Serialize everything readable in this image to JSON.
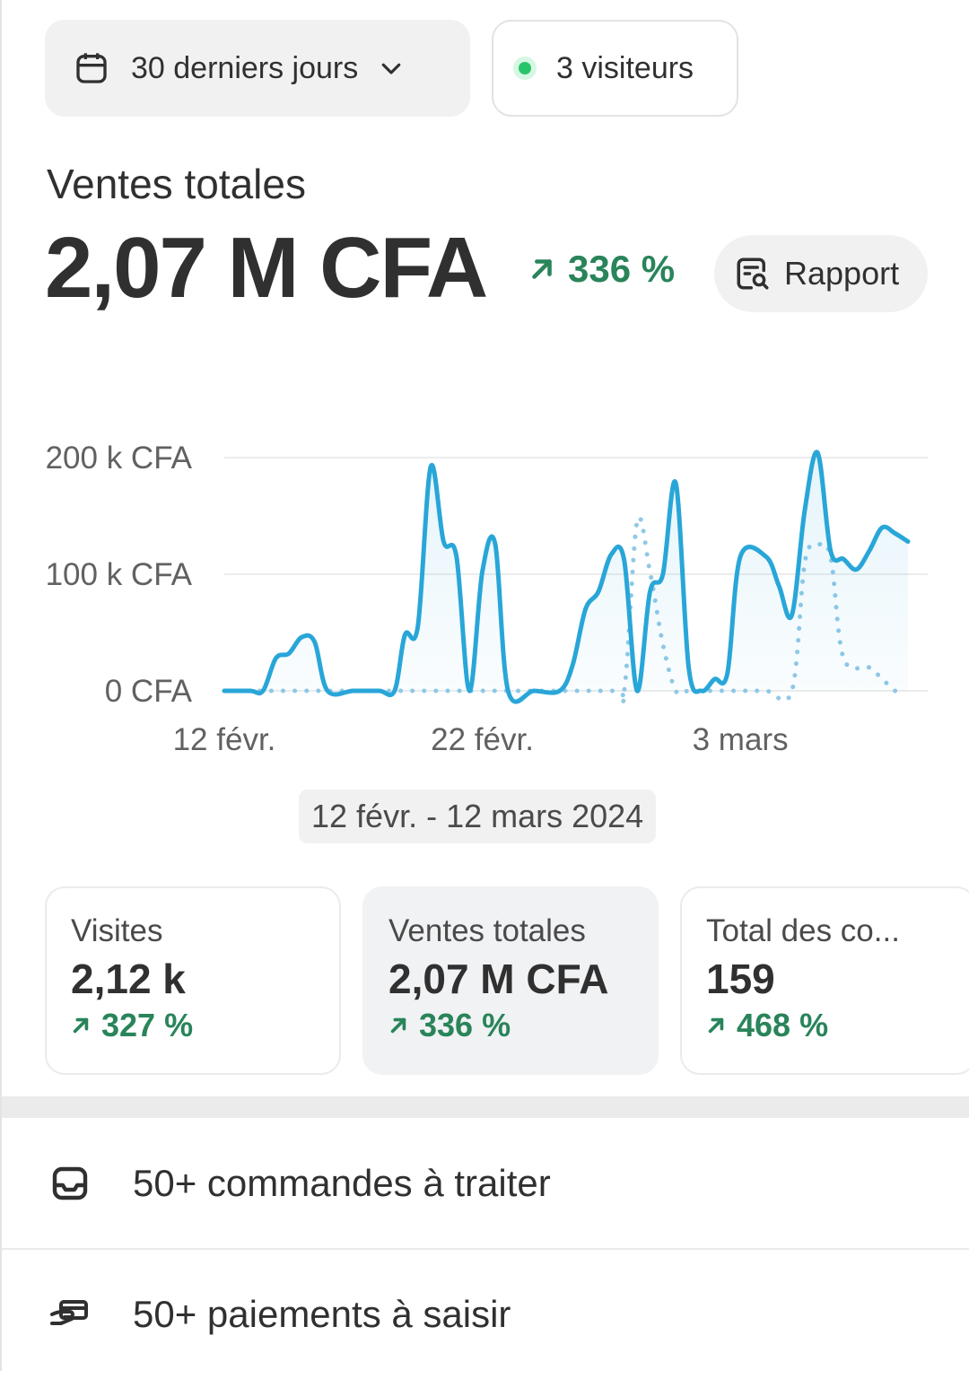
{
  "filters": {
    "date_range_label": "30 derniers jours",
    "visitors_label": "3 visiteurs",
    "visitors_dot_color": "#29c46a"
  },
  "summary": {
    "title": "Ventes totales",
    "value": "2,07 M CFA",
    "change": "336 %",
    "change_color": "#29845a",
    "report_button": "Rapport"
  },
  "chart_data": {
    "type": "line",
    "y_tick_labels": [
      "200 k CFA",
      "100 k CFA",
      "0 CFA"
    ],
    "x_tick_labels": [
      "12 févr.",
      "22 févr.",
      "3 mars"
    ],
    "ylim": [
      0,
      200
    ],
    "y_unit": "k CFA",
    "date_range": "12 févr. - 12 mars 2024",
    "series": [
      {
        "style": "solid",
        "color": "#29a6d8",
        "points": [
          [
            0,
            0
          ],
          [
            1,
            0
          ],
          [
            1.5,
            0
          ],
          [
            2,
            28
          ],
          [
            2.5,
            32
          ],
          [
            3,
            46
          ],
          [
            3.5,
            42
          ],
          [
            4,
            0
          ],
          [
            5,
            0
          ],
          [
            6,
            0
          ],
          [
            6.6,
            0
          ],
          [
            7,
            48
          ],
          [
            7.5,
            55
          ],
          [
            8,
            192
          ],
          [
            8.5,
            128
          ],
          [
            9,
            115
          ],
          [
            9.5,
            0
          ],
          [
            10,
            102
          ],
          [
            10.5,
            126
          ],
          [
            11,
            0
          ],
          [
            12,
            0
          ],
          [
            13,
            0
          ],
          [
            13.5,
            22
          ],
          [
            14,
            70
          ],
          [
            14.5,
            85
          ],
          [
            15,
            117
          ],
          [
            15.5,
            112
          ],
          [
            16,
            0
          ],
          [
            16.5,
            85
          ],
          [
            17,
            100
          ],
          [
            17.5,
            178
          ],
          [
            18,
            20
          ],
          [
            18.5,
            0
          ],
          [
            19,
            10
          ],
          [
            19.5,
            15
          ],
          [
            20,
            115
          ],
          [
            21,
            115
          ],
          [
            21.5,
            90
          ],
          [
            22,
            65
          ],
          [
            22.5,
            155
          ],
          [
            23,
            204
          ],
          [
            23.5,
            120
          ],
          [
            24,
            113
          ],
          [
            24.5,
            104
          ],
          [
            25,
            120
          ],
          [
            25.5,
            140
          ],
          [
            26,
            135
          ],
          [
            26.5,
            128
          ]
        ]
      },
      {
        "style": "dotted",
        "color": "#8fc9e6",
        "points": [
          [
            0,
            0
          ],
          [
            5,
            0
          ],
          [
            10,
            0
          ],
          [
            15,
            0
          ],
          [
            15.5,
            0
          ],
          [
            16,
            145
          ],
          [
            16.5,
            102
          ],
          [
            17,
            40
          ],
          [
            17.5,
            0
          ],
          [
            18,
            0
          ],
          [
            19,
            0
          ],
          [
            20,
            0
          ],
          [
            21,
            0
          ],
          [
            22,
            0
          ],
          [
            22.5,
            110
          ],
          [
            23,
            125
          ],
          [
            23.5,
            115
          ],
          [
            24,
            28
          ],
          [
            25,
            20
          ],
          [
            25.5,
            10
          ],
          [
            26,
            0
          ]
        ]
      }
    ]
  },
  "metrics": [
    {
      "label": "Visites",
      "value": "2,12 k",
      "change": "327 %"
    },
    {
      "label": "Ventes totales",
      "value": "2,07 M CFA",
      "change": "336 %"
    },
    {
      "label": "Total des co...",
      "value": "159",
      "change": "468 %"
    }
  ],
  "tasks": [
    {
      "label": "50+ commandes à traiter",
      "icon": "inbox-icon"
    },
    {
      "label": "50+ paiements à saisir",
      "icon": "payment-hand-icon"
    }
  ]
}
